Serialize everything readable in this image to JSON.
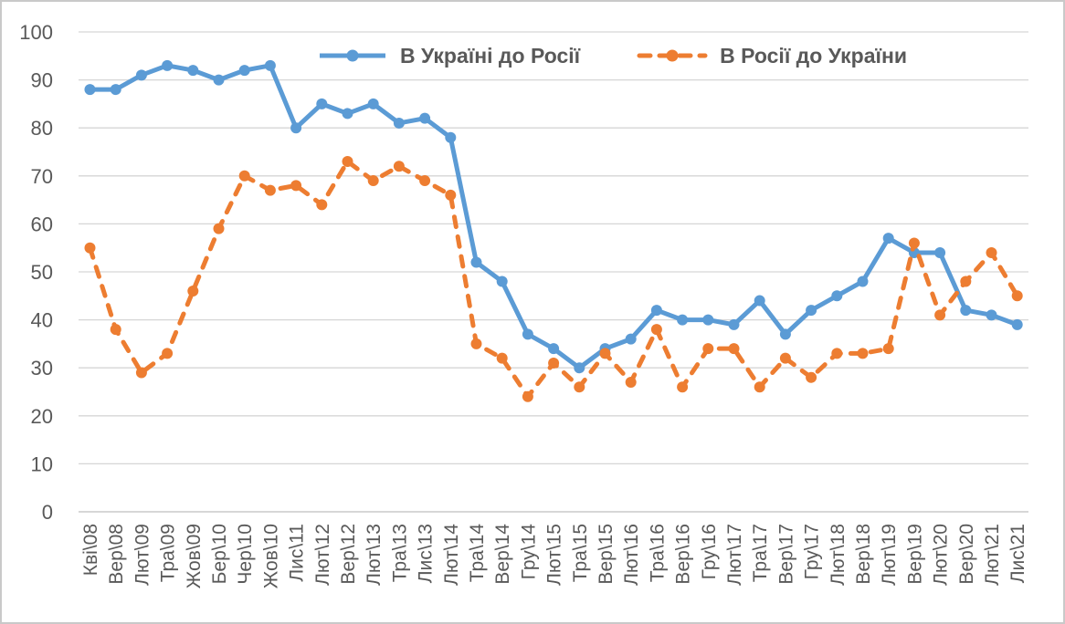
{
  "chart_data": {
    "type": "line",
    "title": "",
    "xlabel": "",
    "ylabel": "",
    "ylim": [
      0,
      100
    ],
    "ytick_step": 10,
    "yticks": [
      "0",
      "10",
      "20",
      "30",
      "40",
      "50",
      "60",
      "70",
      "80",
      "90",
      "100"
    ],
    "grid": "horizontal",
    "legend_position": "top-center-inside",
    "categories": [
      "Кві\\08",
      "Вер\\08",
      "Лют\\09",
      "Тра\\09",
      "Жов\\09",
      "Бер\\10",
      "Чер\\10",
      "Жов\\10",
      "Лис\\11",
      "Лют\\12",
      "Вер\\12",
      "Лют\\13",
      "Тра\\13",
      "Лис\\13",
      "Лют\\14",
      "Тра\\14",
      "Вер\\14",
      "Гру\\14",
      "Лют\\15",
      "Тра\\15",
      "Вер\\15",
      "Лют\\16",
      "Тра\\16",
      "Вер\\16",
      "Гру\\16",
      "Лют\\17",
      "Тра\\17",
      "Вер\\17",
      "Гру\\17",
      "Лют\\18",
      "Вер\\18",
      "Лют\\19",
      "Вер\\19",
      "Лют\\20",
      "Вер\\20",
      "Лют\\21",
      "Лис\\21"
    ],
    "series": [
      {
        "name": "В Україні до Росії",
        "color": "#5B9BD5",
        "line_style": "solid",
        "marker": "circle",
        "values": [
          88,
          88,
          91,
          93,
          92,
          90,
          92,
          93,
          80,
          85,
          83,
          85,
          81,
          82,
          78,
          52,
          48,
          37,
          34,
          30,
          34,
          36,
          42,
          40,
          40,
          39,
          44,
          37,
          42,
          45,
          48,
          57,
          54,
          54,
          42,
          41,
          39
        ]
      },
      {
        "name": "В Росії до України",
        "color": "#ED7D31",
        "line_style": "dashed",
        "marker": "circle",
        "values": [
          55,
          38,
          29,
          33,
          46,
          59,
          70,
          67,
          68,
          64,
          73,
          69,
          72,
          69,
          66,
          35,
          32,
          24,
          31,
          26,
          33,
          27,
          38,
          26,
          34,
          34,
          26,
          32,
          28,
          33,
          33,
          34,
          56,
          41,
          48,
          54,
          45
        ]
      }
    ]
  },
  "colors": {
    "axis_text": "#595959",
    "gridline": "#d6d6d6",
    "zero_line": "#bfbfbf",
    "border": "#c9c9c9",
    "background": "#ffffff"
  }
}
